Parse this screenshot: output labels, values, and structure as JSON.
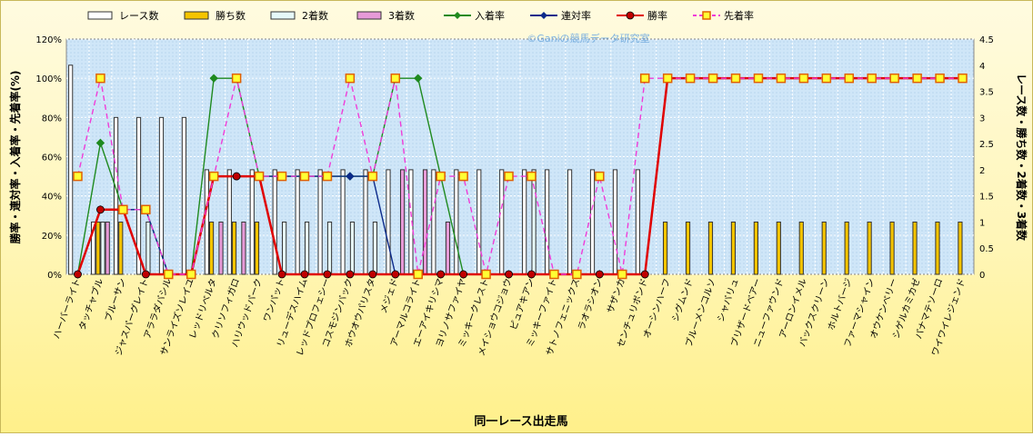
{
  "chart_data": {
    "type": "bar",
    "watermark": "©Ganiの競馬データ研究室",
    "xlabel": "同一レース出走馬",
    "ylabel_left": "勝率・連対率・入着率・先着率(%)",
    "ylabel_right": "レース数・勝ち数・2着数・3着数",
    "ylim_left": [
      0,
      120
    ],
    "ylim_right": [
      0,
      4.5
    ],
    "ticks_left": [
      "0%",
      "20%",
      "40%",
      "60%",
      "80%",
      "100%",
      "120%"
    ],
    "ticks_right": [
      "0",
      "0.5",
      "1",
      "1.5",
      "2",
      "2.5",
      "3",
      "3.5",
      "4",
      "4.5"
    ],
    "legend_position": "top",
    "grid": true,
    "categories": [
      "ハーバーライト",
      "タッチャブル",
      "ブルーサン",
      "ジャスパーグレイト",
      "アララダバシル",
      "サンライズソレイユ",
      "レッドリベルタ",
      "クリソフィガロ",
      "ハリウッドパーク",
      "ワンパット",
      "リューデスハイム",
      "レッドプロフェシー",
      "コスモジンバック",
      "ホウオウパリスタ",
      "メジェド",
      "アーマルコライト",
      "エーアイキリシマ",
      "ヨリノサファイヤ",
      "ミッキークレスト",
      "メイショウコジョウ",
      "ピュアキアン",
      "ミッキーファイト",
      "サトノフェニックス",
      "ラオラシオン",
      "サザンカ",
      "センチュリボンド",
      "オーシンハーフ",
      "シグムンド",
      "ブルーメンコルソ",
      "シャバリュ",
      "ブリザードベアー",
      "ニューファウンド",
      "アーロンイメル",
      "バックスクリーン",
      "ホルトバージ",
      "ファーマシャイン",
      "オウケンベリー",
      "シゲルカミカゼ",
      "パナマテソーロ",
      "ワイワイレジェンド"
    ],
    "series": [
      {
        "name": "レース数",
        "kind": "bar",
        "axis": "right",
        "fill": "#ffffff",
        "stroke": "#333333",
        "values": [
          4,
          1,
          3,
          3,
          3,
          3,
          2,
          2,
          2,
          2,
          2,
          2,
          2,
          2,
          2,
          2,
          2,
          2,
          2,
          2,
          2,
          2,
          2,
          2,
          2,
          2,
          0,
          0,
          0,
          0,
          0,
          0,
          0,
          0,
          0,
          0,
          0,
          0,
          0,
          0
        ]
      },
      {
        "name": "勝ち数",
        "kind": "bar",
        "axis": "right",
        "fill": "#f5c400",
        "stroke": "#333333",
        "values": [
          0,
          1,
          1,
          0,
          0,
          0,
          1,
          1,
          1,
          0,
          0,
          0,
          0,
          0,
          0,
          0,
          0,
          0,
          0,
          0,
          0,
          0,
          0,
          0,
          0,
          0,
          1,
          1,
          1,
          1,
          1,
          1,
          1,
          1,
          1,
          1,
          1,
          1,
          1,
          1
        ]
      },
      {
        "name": "2着数",
        "kind": "bar",
        "axis": "right",
        "fill": "#e6f9f9",
        "stroke": "#333333",
        "values": [
          0,
          1,
          0,
          1,
          0,
          0,
          0,
          0,
          0,
          1,
          1,
          1,
          1,
          1,
          0,
          0,
          0,
          0,
          0,
          0,
          2,
          0,
          0,
          0,
          0,
          0,
          0,
          0,
          0,
          0,
          0,
          0,
          0,
          0,
          0,
          0,
          0,
          0,
          0,
          0
        ]
      },
      {
        "name": "3着数",
        "kind": "bar",
        "axis": "right",
        "fill": "#e79ad8",
        "stroke": "#333333",
        "values": [
          0,
          1,
          0,
          0,
          0,
          0,
          1,
          1,
          0,
          0,
          0,
          0,
          0,
          0,
          2,
          2,
          1,
          0,
          0,
          0,
          0,
          0,
          0,
          0,
          0,
          0,
          0,
          0,
          0,
          0,
          0,
          0,
          0,
          0,
          0,
          0,
          0,
          0,
          0,
          0
        ]
      },
      {
        "name": "入着率",
        "kind": "line",
        "axis": "left",
        "color": "#1f8a1f",
        "marker": "diamond",
        "values": [
          0,
          67,
          33,
          33,
          0,
          0,
          100,
          100,
          50,
          50,
          50,
          50,
          50,
          50,
          100,
          100,
          50,
          0,
          0,
          0,
          0,
          0,
          0,
          0,
          0,
          0,
          null,
          null,
          null,
          null,
          null,
          null,
          null,
          null,
          null,
          null,
          null,
          null,
          null,
          null
        ]
      },
      {
        "name": "連対率",
        "kind": "line",
        "axis": "left",
        "color": "#0c2a8a",
        "marker": "diamond",
        "values": [
          0,
          33,
          33,
          33,
          0,
          0,
          50,
          50,
          50,
          50,
          50,
          50,
          50,
          50,
          0,
          0,
          0,
          0,
          0,
          0,
          0,
          0,
          0,
          0,
          0,
          0,
          null,
          null,
          null,
          null,
          null,
          null,
          null,
          null,
          null,
          null,
          null,
          null,
          null,
          null
        ]
      },
      {
        "name": "勝率",
        "kind": "line",
        "axis": "left",
        "color": "#e00000",
        "marker": "circle",
        "values": [
          0,
          33,
          33,
          0,
          0,
          0,
          50,
          50,
          50,
          0,
          0,
          0,
          0,
          0,
          0,
          0,
          0,
          0,
          0,
          0,
          0,
          0,
          0,
          0,
          0,
          0,
          100,
          100,
          100,
          100,
          100,
          100,
          100,
          100,
          100,
          100,
          100,
          100,
          100,
          100
        ]
      },
      {
        "name": "先着率",
        "kind": "line",
        "axis": "left",
        "color": "#f03cd8",
        "marker": "square",
        "dashed": true,
        "values": [
          50,
          100,
          33,
          33,
          0,
          0,
          50,
          100,
          50,
          50,
          50,
          50,
          100,
          50,
          100,
          0,
          50,
          50,
          0,
          50,
          50,
          0,
          0,
          50,
          0,
          100,
          100,
          100,
          100,
          100,
          100,
          100,
          100,
          100,
          100,
          100,
          100,
          100,
          100,
          100
        ]
      }
    ]
  }
}
